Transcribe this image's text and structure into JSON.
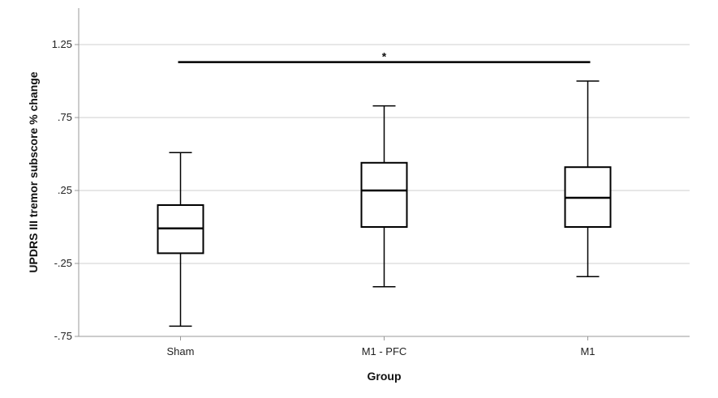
{
  "chart_data": {
    "type": "box",
    "xlabel": "Group",
    "ylabel": "UPDRS III tremor subscore % change",
    "ylim": [
      -0.75,
      1.5
    ],
    "yticks": [
      {
        "value": -0.75,
        "label": "-.75"
      },
      {
        "value": -0.25,
        "label": "-.25"
      },
      {
        "value": 0.25,
        "label": ".25"
      },
      {
        "value": 0.75,
        "label": ".75"
      },
      {
        "value": 1.25,
        "label": "1.25"
      }
    ],
    "grid": true,
    "categories": [
      "Sham",
      "M1 - PFC",
      "M1"
    ],
    "boxes": [
      {
        "category": "Sham",
        "min": -0.68,
        "q1": -0.18,
        "median": -0.01,
        "q3": 0.15,
        "max": 0.51
      },
      {
        "category": "M1 - PFC",
        "min": -0.41,
        "q1": 0.0,
        "median": 0.25,
        "q3": 0.44,
        "max": 0.83
      },
      {
        "category": "M1",
        "min": -0.34,
        "q1": 0.0,
        "median": 0.2,
        "q3": 0.41,
        "max": 1.0
      }
    ],
    "significance": [
      {
        "from": "Sham",
        "to": "M1",
        "y": 1.13,
        "label": "*"
      }
    ]
  }
}
